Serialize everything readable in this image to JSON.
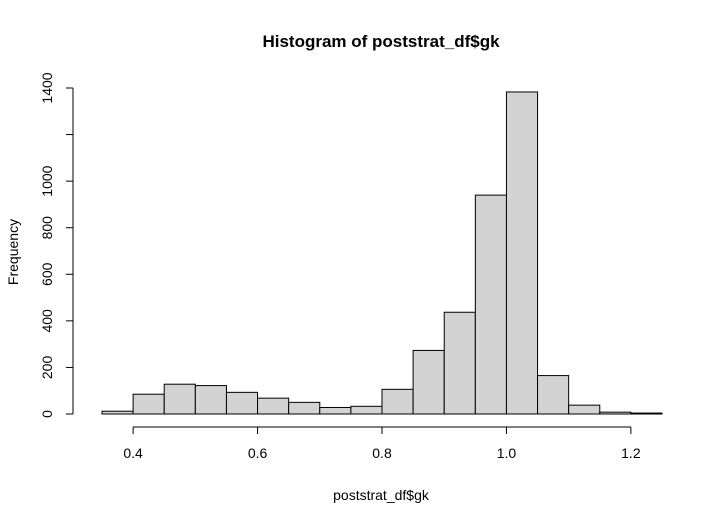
{
  "chart_data": {
    "type": "bar",
    "title": "Histogram of poststrat_df$gk",
    "xlabel": "poststrat_df$gk",
    "ylabel": "Frequency",
    "bin_edges": [
      0.35,
      0.4,
      0.45,
      0.5,
      0.55,
      0.6,
      0.65,
      0.7,
      0.75,
      0.8,
      0.85,
      0.9,
      0.95,
      1.0,
      1.05,
      1.1,
      1.15,
      1.2,
      1.25
    ],
    "values": [
      12,
      85,
      128,
      122,
      93,
      68,
      50,
      28,
      33,
      106,
      273,
      437,
      940,
      1383,
      165,
      38,
      8,
      4
    ],
    "xlim": [
      0.35,
      1.25
    ],
    "ylim": [
      0,
      1400
    ],
    "x_ticks": [
      0.4,
      0.6,
      0.8,
      1.0,
      1.2
    ],
    "x_tick_labels": [
      "0.4",
      "0.6",
      "0.8",
      "1.0",
      "1.2"
    ],
    "y_ticks": [
      0,
      200,
      400,
      600,
      800,
      1000,
      1200,
      1400
    ],
    "y_tick_labels": [
      "0",
      "200",
      "400",
      "600",
      "800",
      "1000",
      "",
      "1400"
    ],
    "grid": false,
    "bar_color": "#d3d3d3"
  }
}
